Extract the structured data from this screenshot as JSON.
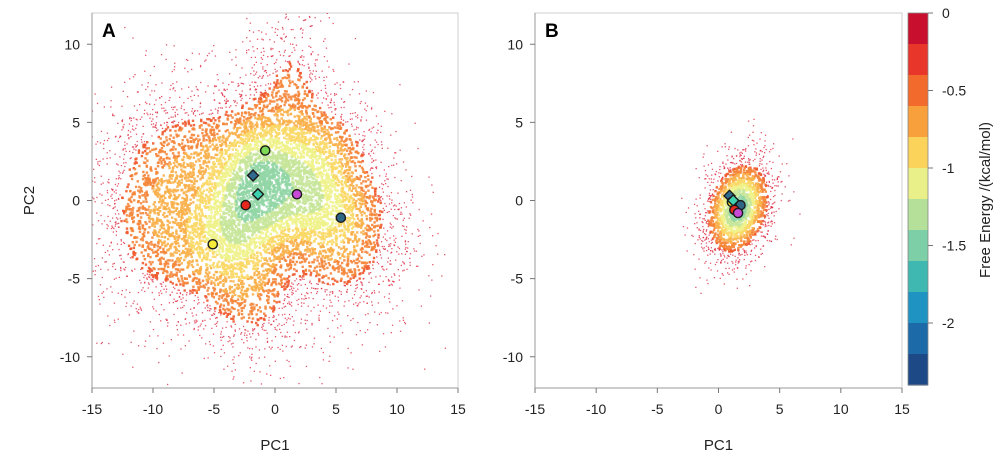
{
  "chart_data": {
    "type": "heatmap",
    "shared_colorbar": {
      "label": "Free Energy /(kcal/mol)",
      "range": [
        -2.4,
        0
      ],
      "ticks": [
        {
          "value": 0,
          "label": "0"
        },
        {
          "value": -0.5,
          "label": "-0.5"
        },
        {
          "value": -1,
          "label": "-1"
        },
        {
          "value": -1.5,
          "label": "-1.5"
        },
        {
          "value": -2,
          "label": "-2"
        }
      ],
      "colors": [
        "#c8102e",
        "#e8372a",
        "#f26a2c",
        "#f8a13c",
        "#fbd35a",
        "#e9f08a",
        "#b5e09a",
        "#7ccfa6",
        "#3fb8b2",
        "#1f93c1",
        "#1c6aa8",
        "#1d4a86"
      ]
    },
    "panels": [
      {
        "label": "A",
        "xlabel": "PC1",
        "ylabel": "PC2",
        "xlim": [
          -15,
          15
        ],
        "ylim": [
          -12,
          12
        ],
        "x_ticks": [
          "-15",
          "-10",
          "-5",
          "0",
          "5",
          "10",
          "15"
        ],
        "y_ticks": [
          "-10",
          "-5",
          "0",
          "5",
          "10"
        ],
        "density_regions": [
          {
            "cx": -1.5,
            "cy": 1.5,
            "sx": 2.2,
            "sy": 3.0,
            "angle": -20,
            "depth": 1.15
          },
          {
            "cx": 2.5,
            "cy": 0.3,
            "sx": 3.0,
            "sy": 2.2,
            "angle": -15,
            "depth": 1.0
          },
          {
            "cx": -4.5,
            "cy": -2.5,
            "sx": 3.2,
            "sy": 2.2,
            "angle": 15,
            "depth": 0.9
          },
          {
            "cx": -6.5,
            "cy": 2.5,
            "sx": 3.2,
            "sy": 2.5,
            "angle": 0,
            "depth": 0.55
          },
          {
            "cx": -2.0,
            "cy": -6.0,
            "sx": 2.2,
            "sy": 2.2,
            "angle": 0,
            "depth": 0.5
          },
          {
            "cx": 1.5,
            "cy": 7.5,
            "sx": 1.6,
            "sy": 2.6,
            "angle": 10,
            "depth": 0.35
          },
          {
            "cx": 5.5,
            "cy": -2.0,
            "sx": 2.6,
            "sy": 3.0,
            "angle": 0,
            "depth": 0.6
          },
          {
            "cx": -10.5,
            "cy": -1.0,
            "sx": 2.4,
            "sy": 3.0,
            "angle": 0,
            "depth": 0.45
          },
          {
            "cx": 4.0,
            "cy": 3.5,
            "sx": 2.0,
            "sy": 1.6,
            "angle": 0,
            "depth": 0.5
          }
        ],
        "markers": [
          {
            "shape": "circle",
            "color": "#7ed957",
            "x": -0.8,
            "y": 3.2
          },
          {
            "shape": "diamond",
            "color": "#2f6b8f",
            "x": -1.8,
            "y": 1.6
          },
          {
            "shape": "diamond",
            "color": "#3ed3b0",
            "x": -1.4,
            "y": 0.4
          },
          {
            "shape": "circle",
            "color": "#c84bd8",
            "x": 1.8,
            "y": 0.4
          },
          {
            "shape": "circle",
            "color": "#e8281e",
            "x": -2.4,
            "y": -0.3
          },
          {
            "shape": "circle",
            "color": "#2e6686",
            "x": 5.4,
            "y": -1.1
          },
          {
            "shape": "circle",
            "color": "#f6ea3a",
            "x": -5.1,
            "y": -2.8
          }
        ]
      },
      {
        "label": "B",
        "xlabel": "PC1",
        "ylabel": "",
        "xlim": [
          -15,
          15
        ],
        "ylim": [
          -12,
          12
        ],
        "x_ticks": [
          "-15",
          "-10",
          "-5",
          "0",
          "5",
          "10",
          "15"
        ],
        "y_ticks": [
          "-10",
          "-5",
          "0",
          "5",
          "10"
        ],
        "density_regions": [
          {
            "cx": 1.6,
            "cy": -0.5,
            "sx": 1.2,
            "sy": 1.6,
            "angle": -30,
            "depth": 1.35
          }
        ],
        "markers": [
          {
            "shape": "diamond",
            "color": "#2f6b8f",
            "x": 0.9,
            "y": 0.3
          },
          {
            "shape": "circle",
            "color": "#f6ea3a",
            "x": 1.1,
            "y": -0.1
          },
          {
            "shape": "diamond",
            "color": "#3ed3b0",
            "x": 1.2,
            "y": 0.0
          },
          {
            "shape": "circle",
            "color": "#2e6686",
            "x": 1.8,
            "y": -0.3
          },
          {
            "shape": "circle",
            "color": "#e8281e",
            "x": 1.3,
            "y": -0.6
          },
          {
            "shape": "circle",
            "color": "#c84bd8",
            "x": 1.6,
            "y": -0.8
          }
        ]
      }
    ]
  }
}
